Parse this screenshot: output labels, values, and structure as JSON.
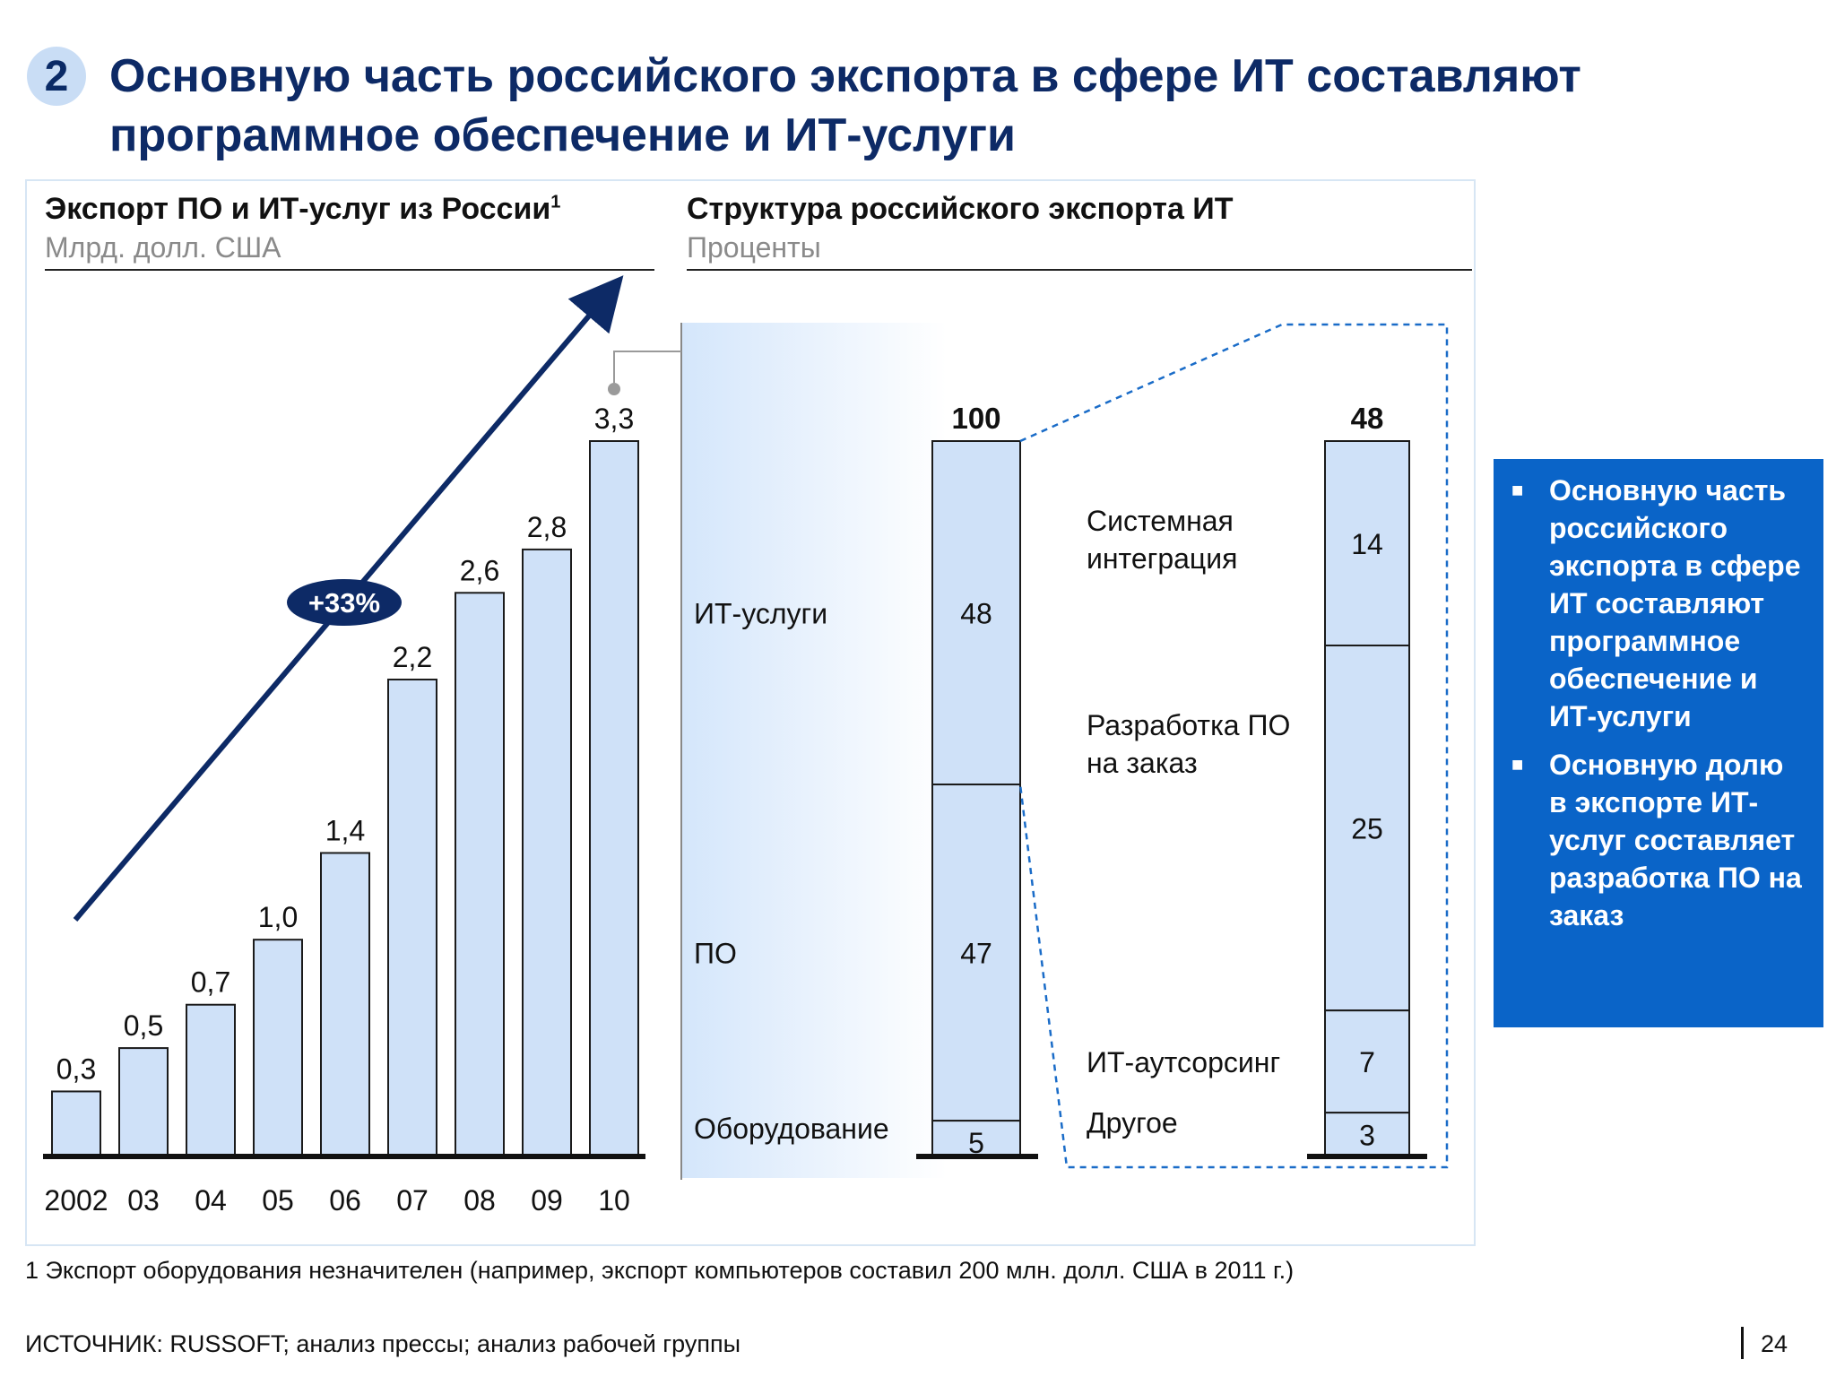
{
  "header": {
    "badge": "2",
    "title": "Основную часть российского экспорта в сфере ИТ составляют программное обеспечение и ИТ-услуги"
  },
  "left_panel": {
    "title": "Экспорт ПО и ИТ-услуг из России",
    "footnote_mark": "1",
    "unit": "Млрд. долл. США"
  },
  "right_panel": {
    "title": "Структура российского экспорта ИТ",
    "unit": "Проценты"
  },
  "sidebar": {
    "bullets": [
      "Основную часть российского экспорта в сфере ИТ составляют программное обеспечение и ИТ-услуги",
      "Основную долю в экспорте ИТ-услуг составляет разработка ПО на заказ"
    ]
  },
  "footer": {
    "footnote": "1 Экспорт оборудования незначителен (например, экспорт компьютеров составил 200 млн. долл. США в 2011 г.)",
    "source": "ИСТОЧНИК: RUSSOFT; анализ прессы; анализ рабочей группы",
    "page_number": "24"
  },
  "colors": {
    "bar_fill": "#cfe1f8",
    "navy": "#0d2a66",
    "accent_blue": "#0a64c8",
    "dashed_line": "#1a6cc8"
  },
  "chart_data": [
    {
      "type": "bar",
      "categories": [
        "2002",
        "03",
        "04",
        "05",
        "06",
        "07",
        "08",
        "09",
        "10"
      ],
      "values": [
        0.3,
        0.5,
        0.7,
        1.0,
        1.4,
        2.2,
        2.6,
        2.8,
        3.3
      ],
      "value_labels": [
        "0,3",
        "0,5",
        "0,7",
        "1,0",
        "1,4",
        "2,2",
        "2,6",
        "2,8",
        "3,3"
      ],
      "ylim": [
        0,
        3.3
      ],
      "annotation": "+33%",
      "grid": false
    },
    {
      "type": "bar",
      "stacked": true,
      "total_label": "100",
      "segments": [
        {
          "label": "ИТ-услуги",
          "value": 48
        },
        {
          "label": "ПО",
          "value": 47
        },
        {
          "label": "Оборудование",
          "value": 5
        }
      ]
    },
    {
      "type": "bar",
      "stacked": true,
      "total_label": "48",
      "segments": [
        {
          "label": "Системная интеграция",
          "value": 14
        },
        {
          "label": "Разработка ПО на заказ",
          "value": 25
        },
        {
          "label": "ИТ-аутсорсинг",
          "value": 7
        },
        {
          "label": "Другое",
          "value": 3
        }
      ]
    }
  ]
}
